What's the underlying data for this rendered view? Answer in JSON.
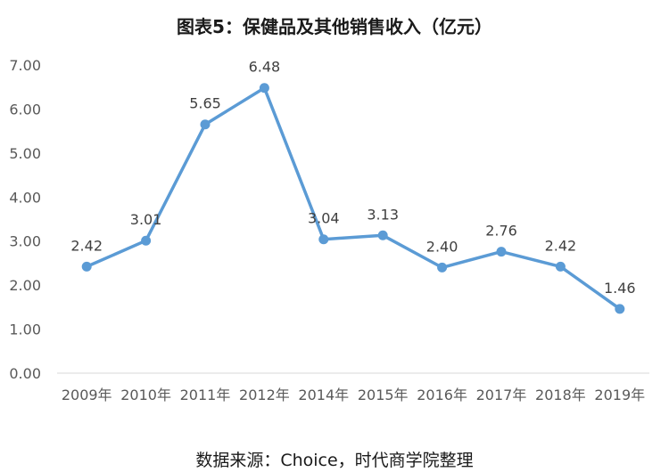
{
  "title": "图表5：保健品及其他销售收入（亿元）",
  "source": "数据来源：Choice，时代商学院整理",
  "colors": {
    "line": "#5b9bd5",
    "axis": "#d9d9d9"
  },
  "chart_data": {
    "type": "line",
    "title": "图表5：保健品及其他销售收入（亿元）",
    "categories": [
      "2009年",
      "2010年",
      "2011年",
      "2012年",
      "2014年",
      "2015年",
      "2016年",
      "2017年",
      "2018年",
      "2019年"
    ],
    "values": [
      2.42,
      3.01,
      5.65,
      6.48,
      3.04,
      3.13,
      2.4,
      2.76,
      2.42,
      1.46
    ],
    "data_labels": [
      "2.42",
      "3.01",
      "5.65",
      "6.48",
      "3.04",
      "3.13",
      "2.40",
      "2.76",
      "2.42",
      "1.46"
    ],
    "yticks": [
      "0.00",
      "1.00",
      "2.00",
      "3.00",
      "4.00",
      "5.00",
      "6.00",
      "7.00"
    ],
    "ylim": [
      0,
      7
    ],
    "grid": false,
    "legend": "none",
    "markers": true
  }
}
